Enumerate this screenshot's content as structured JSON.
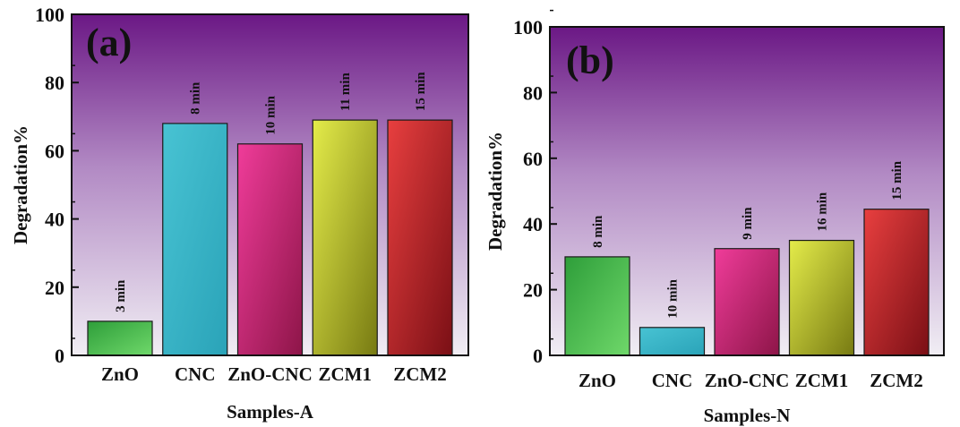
{
  "chart_data": [
    {
      "type": "bar",
      "panel_label": "(a)",
      "categories": [
        "ZnO",
        "CNC",
        "ZnO-CNC",
        "ZCM1",
        "ZCM2"
      ],
      "values": [
        10,
        68,
        62,
        69,
        69
      ],
      "bar_labels": [
        "3 min",
        "8 min",
        "10 min",
        "11 min",
        "15 min"
      ],
      "bar_colors": [
        [
          "#2e9e3a",
          "#6fd86a"
        ],
        [
          "#48c3d3",
          "#2aa3b8"
        ],
        [
          "#f03c9a",
          "#8d1548"
        ],
        [
          "#e4ec4a",
          "#777a12"
        ],
        [
          "#e83f3f",
          "#7a0f15"
        ]
      ],
      "xlabel": "Samples-A",
      "ylabel": "Degradation%",
      "ylim": [
        0,
        100
      ],
      "yticks": [
        0,
        20,
        40,
        60,
        80,
        100
      ],
      "background": [
        "#6b1885",
        "#b28ac4",
        "#f1eef4"
      ]
    },
    {
      "type": "bar",
      "panel_label": "(b)",
      "categories": [
        "ZnO",
        "CNC",
        "ZnO-CNC",
        "ZCM1",
        "ZCM2"
      ],
      "values": [
        30,
        8.5,
        32.5,
        35,
        44.5
      ],
      "bar_labels": [
        "8 min",
        "10 min",
        "9 min",
        "16 min",
        "15 min"
      ],
      "bar_colors": [
        [
          "#2e9e3a",
          "#6fd86a"
        ],
        [
          "#48c3d3",
          "#2aa3b8"
        ],
        [
          "#f03c9a",
          "#8d1548"
        ],
        [
          "#e4ec4a",
          "#777a12"
        ],
        [
          "#e83f3f",
          "#7a0f15"
        ]
      ],
      "xlabel": "Samples-N",
      "ylabel": "Degradation%",
      "ylim": [
        0,
        100
      ],
      "yticks": [
        0,
        20,
        40,
        60,
        80,
        100
      ],
      "background": [
        "#6b1885",
        "#b28ac4",
        "#f1eef4"
      ]
    }
  ]
}
